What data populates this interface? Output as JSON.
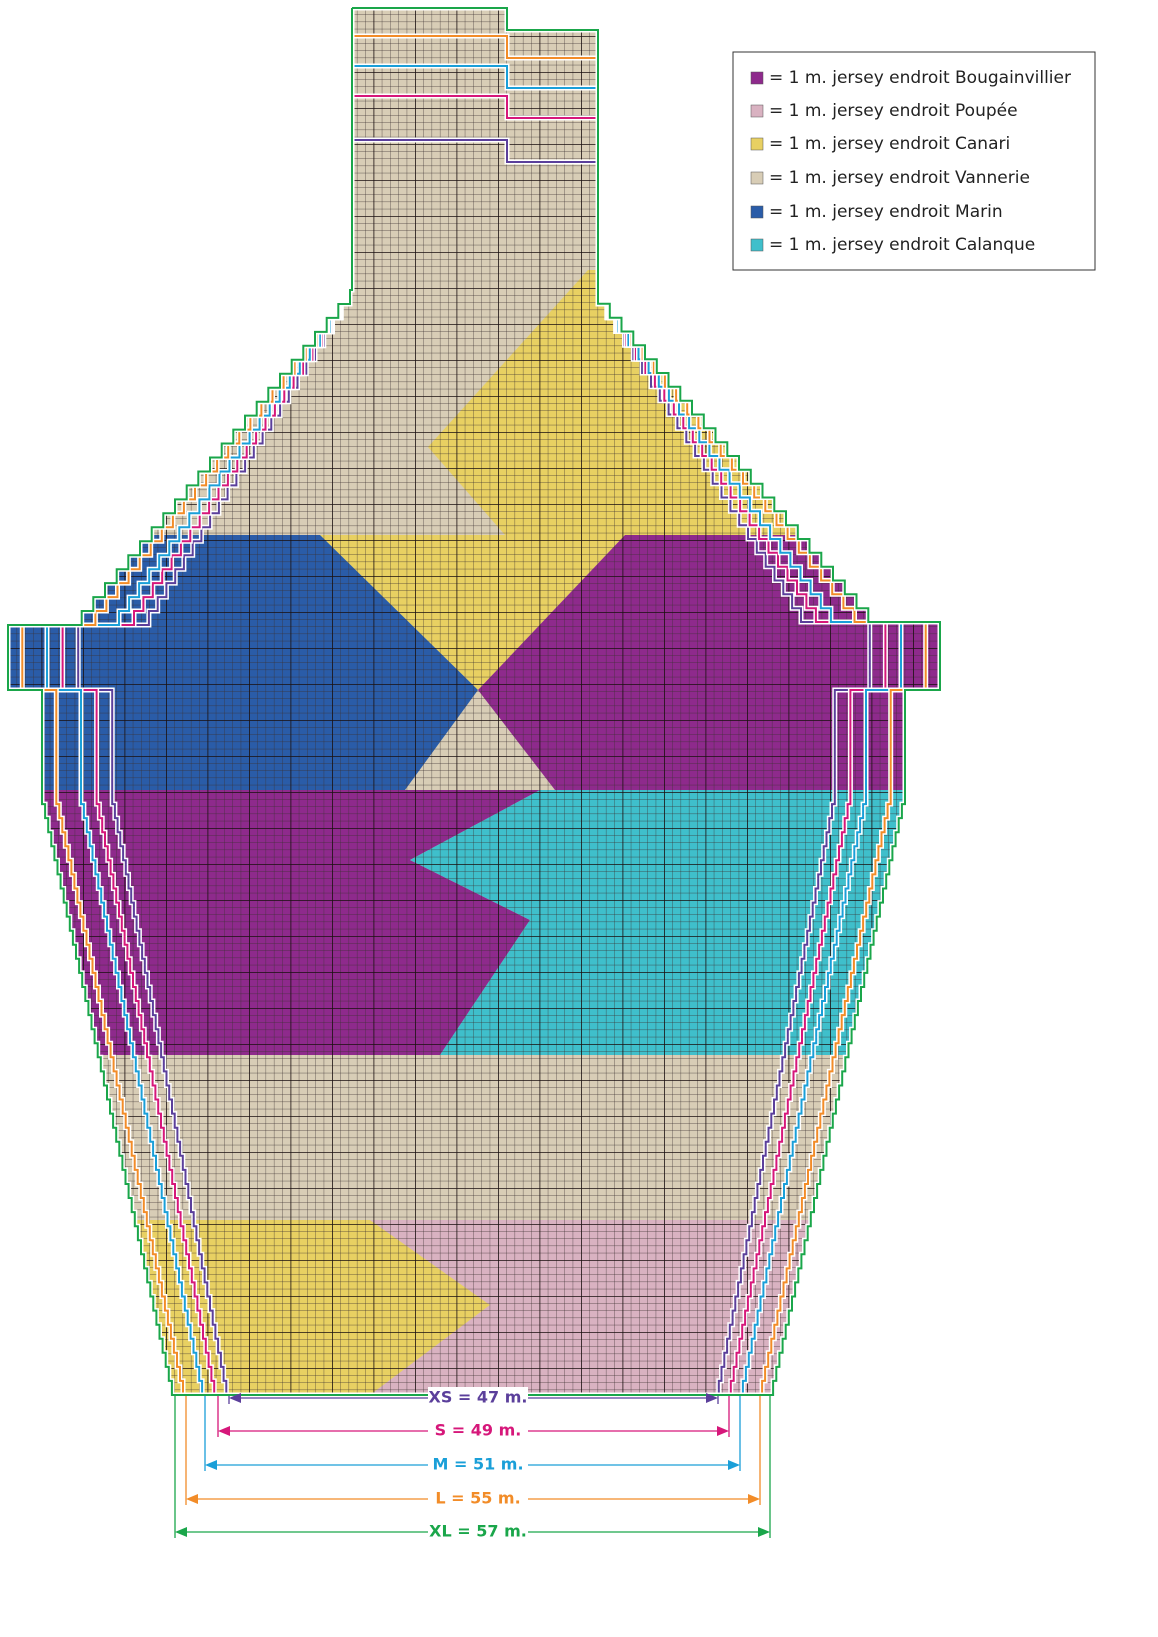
{
  "legend": [
    {
      "label": "= 1 m. jersey endroit Bougainvillier",
      "color": "#8e2a8c"
    },
    {
      "label": "= 1 m. jersey endroit Poupée",
      "color": "#d9b2c1"
    },
    {
      "label": "= 1 m. jersey endroit Canari",
      "color": "#e8d062"
    },
    {
      "label": "= 1 m. jersey endroit Vannerie",
      "color": "#d8cdb6"
    },
    {
      "label": "= 1 m. jersey endroit Marin",
      "color": "#2a5ca8"
    },
    {
      "label": "= 1 m. jersey endroit Calanque",
      "color": "#3fbfcb"
    }
  ],
  "sizes": [
    {
      "label": "XS = 47 m.",
      "color": "#5b3f9b"
    },
    {
      "label": "S = 49 m.",
      "color": "#d6177a"
    },
    {
      "label": "M = 51 m.",
      "color": "#1a9fd8"
    },
    {
      "label": "L = 55 m.",
      "color": "#f28c28"
    },
    {
      "label": "XL = 57 m.",
      "color": "#1aa64a"
    }
  ]
}
